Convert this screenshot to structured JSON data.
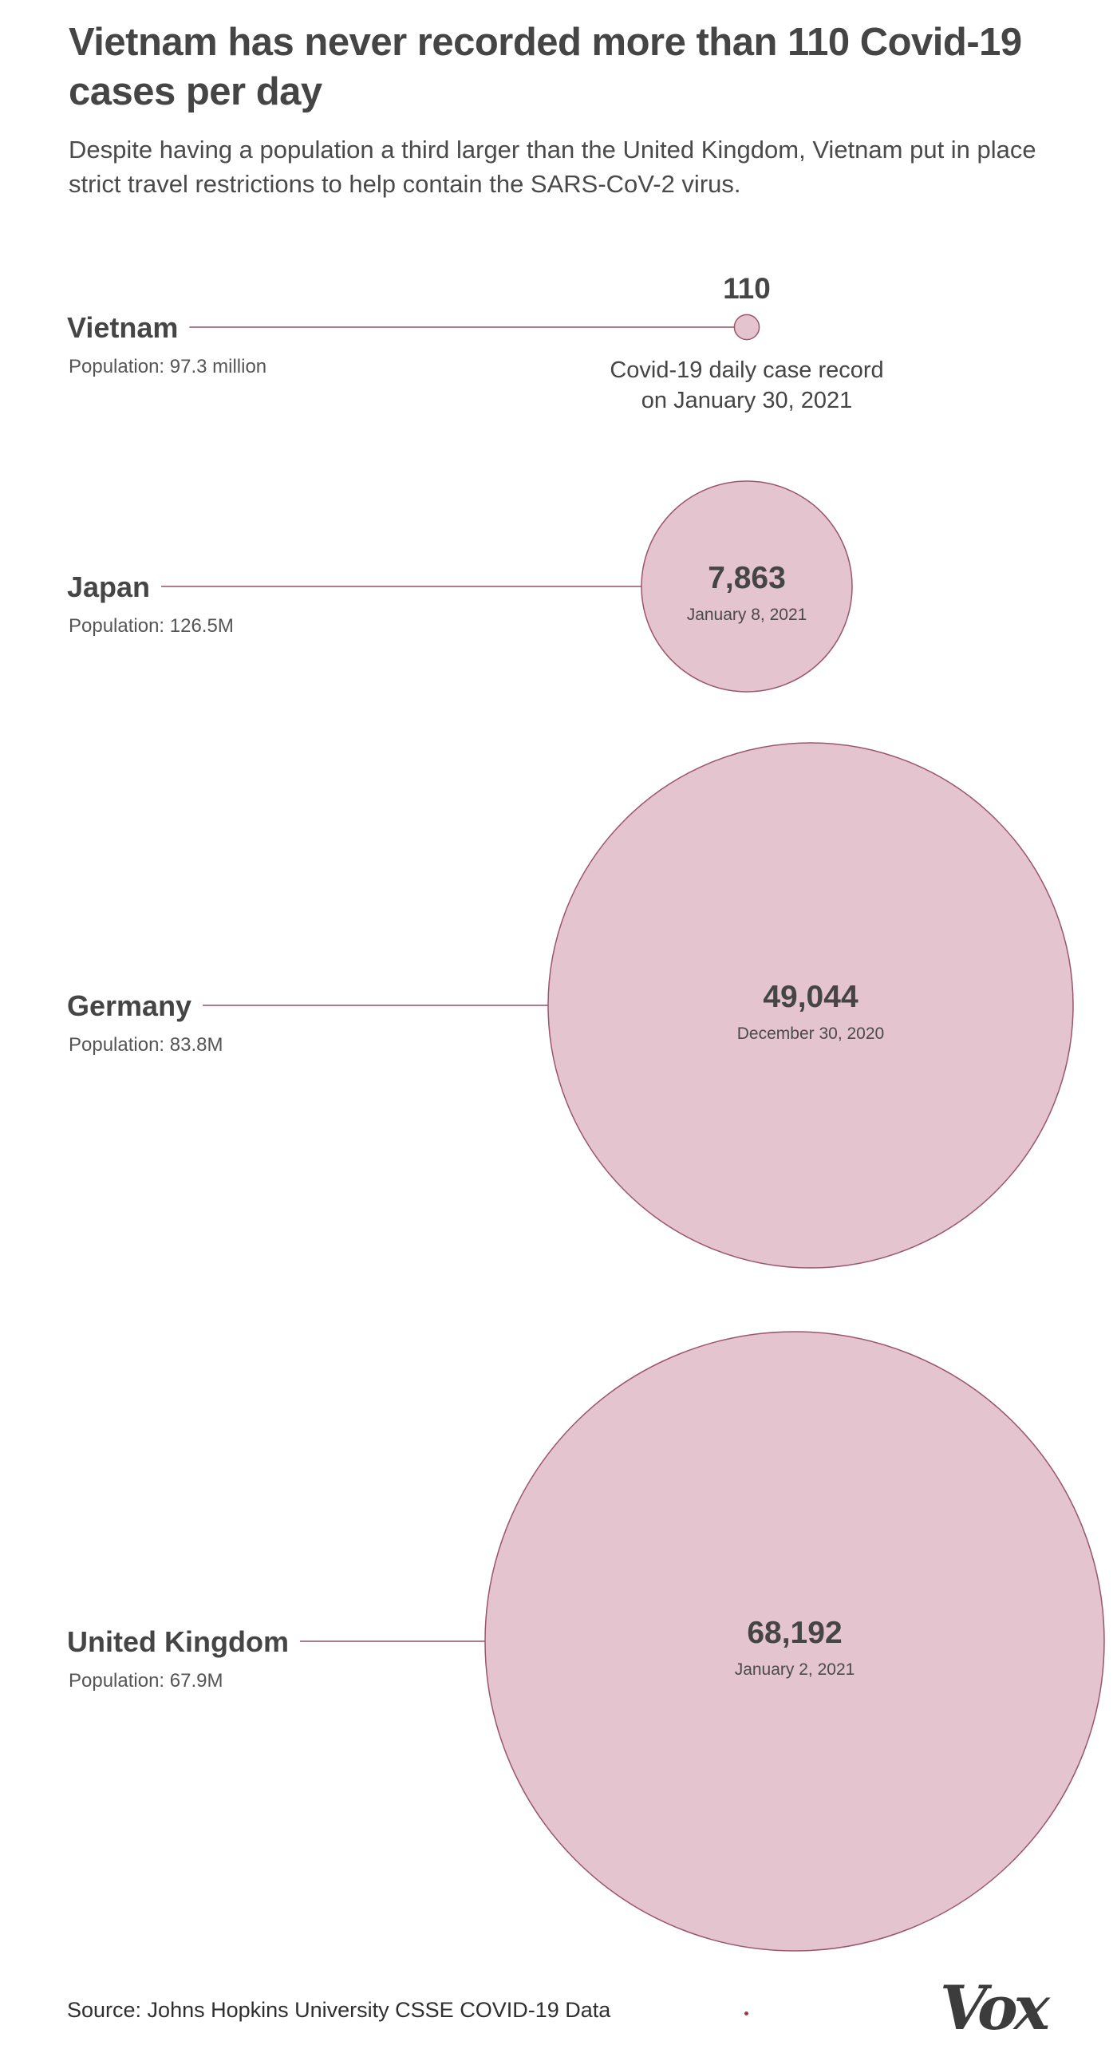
{
  "title": "Vietnam has never recorded more than 110 Covid-19 cases per day",
  "subtitle": "Despite having a population a third larger than the United Kingdom, Vietnam put in place strict travel restrictions to help contain the SARS-CoV-2 virus.",
  "source": "Source: Johns Hopkins University CSSE COVID-19 Data",
  "logo": "Vox",
  "colors": {
    "bubble_fill": "#e4c4ce",
    "bubble_stroke": "#9b5669",
    "leader_line": "#b07c8b",
    "label_text": "#454545"
  },
  "chart_data": {
    "type": "bubble",
    "title": "Vietnam has never recorded more than 110 Covid-19 cases per day",
    "value_description": "Covid-19 daily case record",
    "callout": {
      "line1": "Covid-19 daily case record",
      "line2": "on January 30, 2021"
    },
    "series": [
      {
        "country": "Vietnam",
        "population": "Population: 97.3 million",
        "value": 110,
        "value_label": "110",
        "date": "January 30, 2021"
      },
      {
        "country": "Japan",
        "population": "Population: 126.5M",
        "value": 7863,
        "value_label": "7,863",
        "date": "January 8, 2021"
      },
      {
        "country": "Germany",
        "population": "Population: 83.8M",
        "value": 49044,
        "value_label": "49,044",
        "date": "December 30, 2020"
      },
      {
        "country": "United Kingdom",
        "population": "Population: 67.9M",
        "value": 68192,
        "value_label": "68,192",
        "date": "January 2, 2021"
      }
    ]
  }
}
